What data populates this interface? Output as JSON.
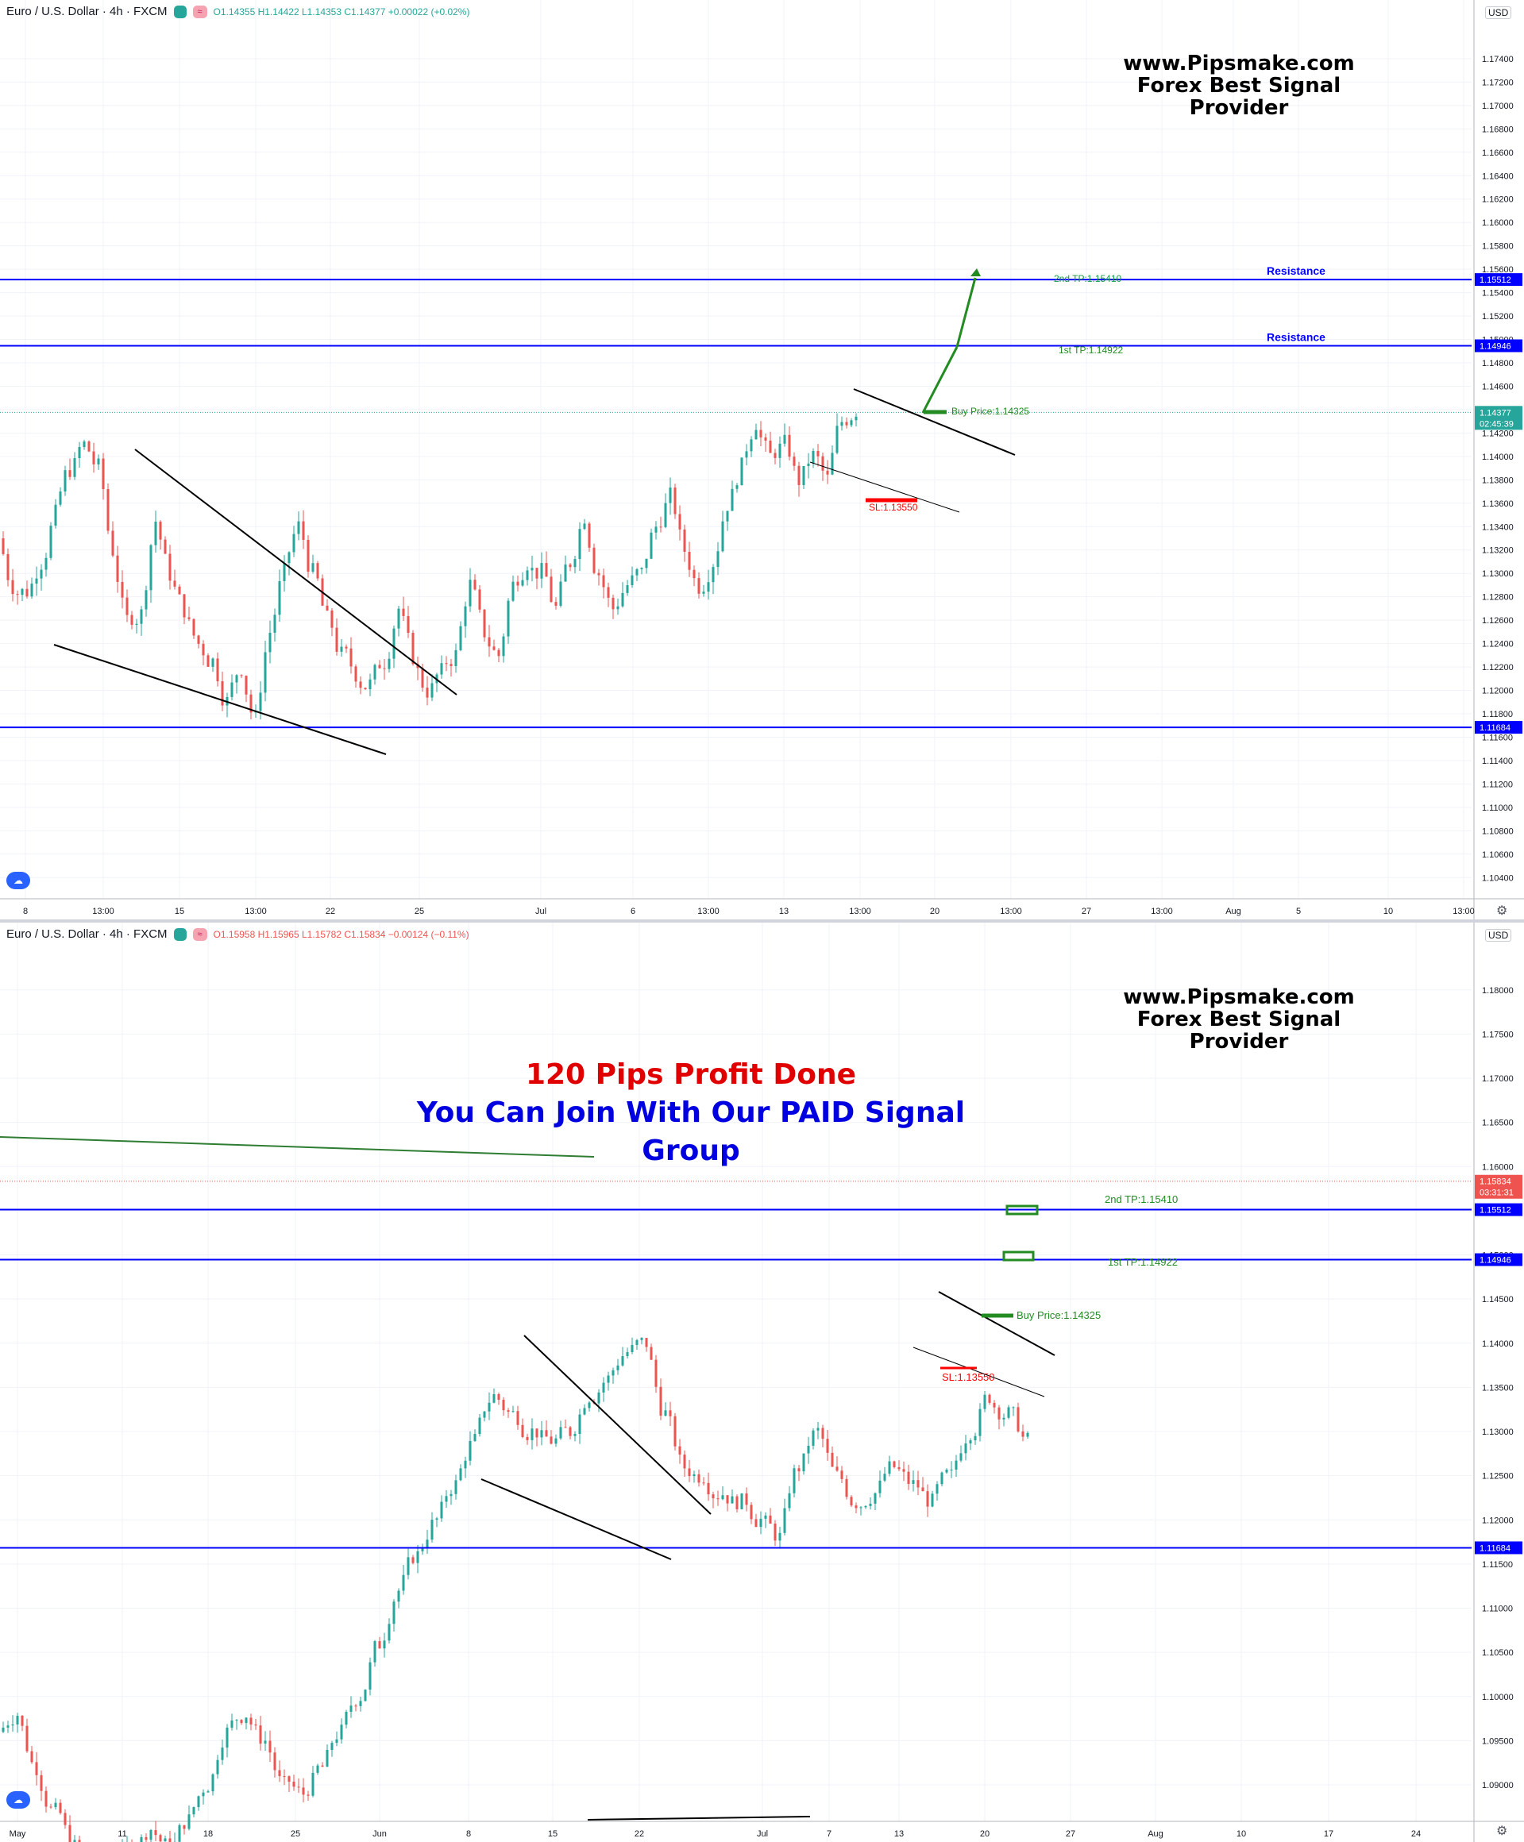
{
  "colors": {
    "up": "#26a69a",
    "down": "#ef5350",
    "level": "#0000ff",
    "target": "#228b22",
    "stop": "#ff0000",
    "trend": "#000000",
    "grid": "#f0f3fa",
    "axis_text": "#131722"
  },
  "icons": {
    "logo": "tradingview-cloud-icon",
    "settings": "gear-icon",
    "status": "green-dot-icon",
    "compare": "waves-toggle-icon"
  },
  "panels": [
    {
      "symbol": "Euro / U.S. Dollar · 4h · FXCM",
      "ohlc": "O1.14355 H1.14422 L1.14353 C1.14377 +0.00022 (+0.02%)",
      "ohlc_direction": "up",
      "currency": "USD",
      "brand_line1": "www.Pipsmake.com",
      "brand_line2": "Forex Best Signal Provider"
    },
    {
      "symbol": "Euro / U.S. Dollar · 4h · FXCM",
      "ohlc": "O1.15958 H1.15965 L1.15782 C1.15834 −0.00124 (−0.11%)",
      "ohlc_direction": "down",
      "currency": "USD",
      "brand_line1": "www.Pipsmake.com",
      "brand_line2": "Forex Best Signal Provider",
      "promo_line1": "120 Pips Profit Done",
      "promo_line2": "You Can Join With Our PAID Signal Group"
    }
  ],
  "chart_data": [
    {
      "type": "candlestick",
      "title": "Euro / U.S. Dollar · 4h · FXCM",
      "ylim": [
        1.103,
        1.178
      ],
      "y_ticks": [
        "1.17400",
        "1.17200",
        "1.17000",
        "1.16800",
        "1.16600",
        "1.16400",
        "1.16200",
        "1.16000",
        "1.15800",
        "1.15600",
        "1.15400",
        "1.15200",
        "1.15000",
        "1.14800",
        "1.14600",
        "1.14400",
        "1.14200",
        "1.14000",
        "1.13800",
        "1.13600",
        "1.13400",
        "1.13200",
        "1.13000",
        "1.12800",
        "1.12600",
        "1.12400",
        "1.12200",
        "1.12000",
        "1.11800",
        "1.11600",
        "1.11400",
        "1.11200",
        "1.11000",
        "1.10800",
        "1.10600",
        "1.10400"
      ],
      "x_ticks": [
        "8",
        "13:00",
        "15",
        "13:00",
        "22",
        "25",
        "Jul",
        "6",
        "13:00",
        "13",
        "13:00",
        "20",
        "13:00",
        "27",
        "13:00",
        "Aug",
        "5",
        "10",
        "13:00"
      ],
      "approx_close_path": [
        1.133,
        1.129,
        1.1285,
        1.131,
        1.135,
        1.139,
        1.141,
        1.139,
        1.132,
        1.126,
        1.1265,
        1.1345,
        1.13,
        1.127,
        1.124,
        1.1225,
        1.119,
        1.122,
        1.1175,
        1.125,
        1.13,
        1.134,
        1.13,
        1.126,
        1.123,
        1.1215,
        1.1205,
        1.1225,
        1.127,
        1.123,
        1.12,
        1.1215,
        1.123,
        1.129,
        1.125,
        1.123,
        1.129,
        1.131,
        1.13,
        1.127,
        1.131,
        1.135,
        1.13,
        1.127,
        1.129,
        1.13,
        1.134,
        1.1365,
        1.132,
        1.129,
        1.131,
        1.136,
        1.139,
        1.143,
        1.14,
        1.141,
        1.138,
        1.14,
        1.138,
        1.143,
        1.144
      ],
      "horizontal_levels": [
        {
          "price": 1.15512,
          "label": "1.15512",
          "note": "Resistance"
        },
        {
          "price": 1.14946,
          "label": "1.14946",
          "note": "Resistance"
        },
        {
          "price": 1.11684,
          "label": "1.11684",
          "note": ""
        }
      ],
      "current_price": {
        "label": "1.14377",
        "countdown": "02:45:39",
        "value": 1.14377
      },
      "annotations": {
        "tp2": "2nd TP:1.15410",
        "tp1": "1st TP:1.14922",
        "buy": "Buy Price:1.14325",
        "sl": "SL:1.13550"
      }
    },
    {
      "type": "candlestick",
      "title": "Euro / U.S. Dollar · 4h · FXCM",
      "ylim": [
        1.0865,
        1.186
      ],
      "y_ticks": [
        "1.18000",
        "1.17500",
        "1.17000",
        "1.16500",
        "1.16000",
        "1.15500",
        "1.15000",
        "1.14500",
        "1.14000",
        "1.13500",
        "1.13000",
        "1.12500",
        "1.12000",
        "1.11500",
        "1.11000",
        "1.10500",
        "1.10000",
        "1.09500",
        "1.09000"
      ],
      "x_ticks": [
        "May",
        "11",
        "18",
        "25",
        "Jun",
        "8",
        "15",
        "22",
        "Jul",
        "7",
        "13",
        "20",
        "27",
        "Aug",
        "10",
        "17",
        "24"
      ],
      "approx_close_path": [
        1.096,
        1.098,
        1.092,
        1.087,
        1.083,
        1.08,
        1.081,
        1.083,
        1.085,
        1.083,
        1.086,
        1.09,
        1.096,
        1.098,
        1.095,
        1.09,
        1.089,
        1.092,
        1.096,
        1.1,
        1.106,
        1.112,
        1.116,
        1.12,
        1.124,
        1.129,
        1.134,
        1.132,
        1.13,
        1.129,
        1.13,
        1.134,
        1.136,
        1.139,
        1.14,
        1.132,
        1.126,
        1.125,
        1.123,
        1.122,
        1.12,
        1.118,
        1.126,
        1.13,
        1.125,
        1.122,
        1.123,
        1.126,
        1.124,
        1.122,
        1.125,
        1.13,
        1.134,
        1.132,
        1.129,
        1.133,
        1.138,
        1.142,
        1.14,
        1.142,
        1.144,
        1.148,
        1.154,
        1.158,
        1.1583
      ],
      "horizontal_levels": [
        {
          "price": 1.15512,
          "label": "1.15512",
          "note": ""
        },
        {
          "price": 1.14946,
          "label": "1.14946",
          "note": ""
        },
        {
          "price": 1.11684,
          "label": "1.11684",
          "note": ""
        }
      ],
      "current_price": {
        "label": "1.15834",
        "countdown": "03:31:31",
        "value": 1.15834
      },
      "annotations": {
        "tp2": "2nd TP:1.15410",
        "tp1": "1st TP:1.14922",
        "buy": "Buy Price:1.14325",
        "sl": "SL:1.13550"
      }
    }
  ]
}
